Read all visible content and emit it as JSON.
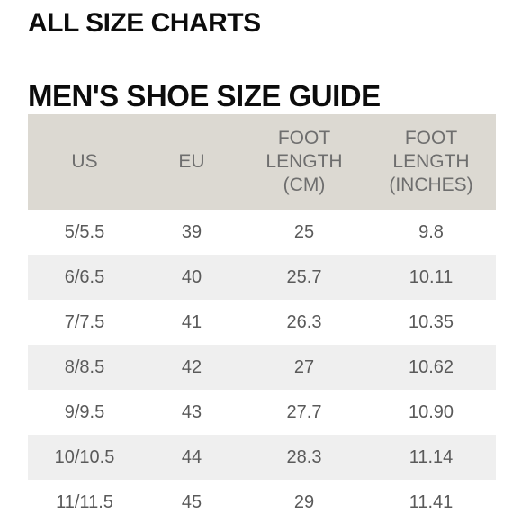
{
  "header": {
    "title": "ALL SIZE CHARTS"
  },
  "section": {
    "title": "MEN'S SHOE SIZE GUIDE"
  },
  "table": {
    "columns": [
      [
        "US"
      ],
      [
        "EU"
      ],
      [
        "FOOT",
        "LENGTH",
        "(CM)"
      ],
      [
        "FOOT",
        "LENGTH",
        "(INCHES)"
      ]
    ],
    "rows": [
      [
        "5/5.5",
        "39",
        "25",
        "9.8"
      ],
      [
        "6/6.5",
        "40",
        "25.7",
        "10.11"
      ],
      [
        "7/7.5",
        "41",
        "26.3",
        "10.35"
      ],
      [
        "8/8.5",
        "42",
        "27",
        "10.62"
      ],
      [
        "9/9.5",
        "43",
        "27.7",
        "10.90"
      ],
      [
        "10/10.5",
        "44",
        "28.3",
        "11.14"
      ],
      [
        "11/11.5",
        "45",
        "29",
        "11.41"
      ]
    ]
  },
  "colors": {
    "header_bg": "#dcd9d2",
    "stripe_bg": "#efefef",
    "title": "#0c0c0c",
    "cell_text": "#5a5a5a"
  }
}
